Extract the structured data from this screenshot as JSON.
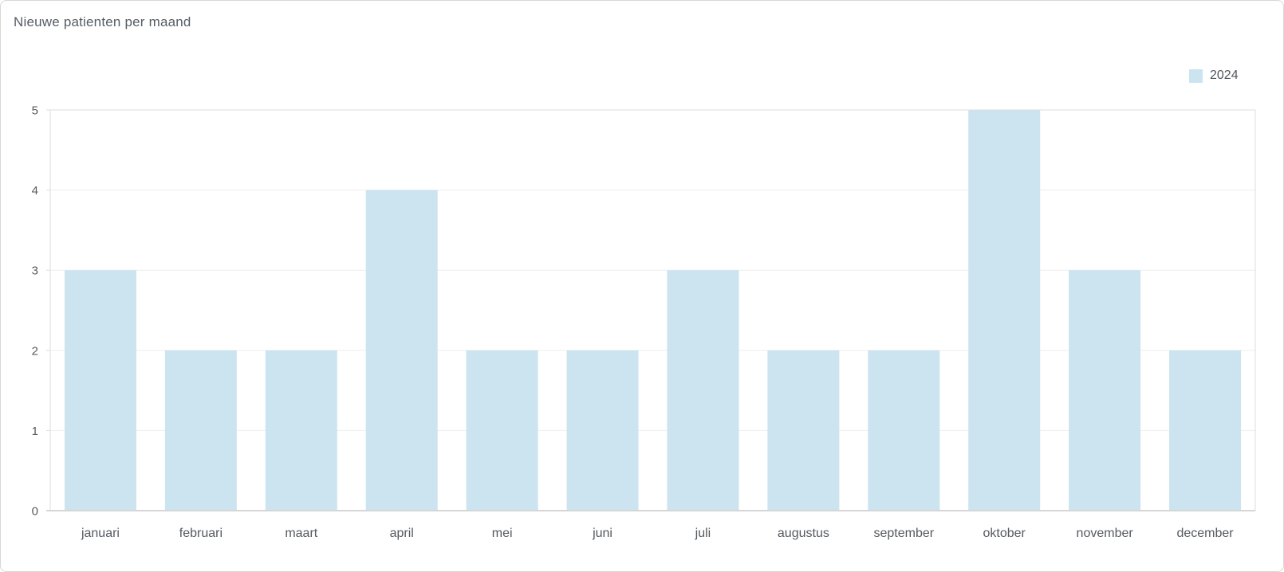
{
  "page": {
    "title": "Nieuwe patienten per maand"
  },
  "legend": {
    "items": [
      {
        "label": "2024",
        "swatch_color": "#cce3f0"
      }
    ]
  },
  "chart_data": {
    "type": "bar",
    "title": "Nieuwe patienten per maand",
    "categories": [
      "januari",
      "februari",
      "maart",
      "april",
      "mei",
      "juni",
      "juli",
      "augustus",
      "september",
      "oktober",
      "november",
      "december"
    ],
    "series": [
      {
        "name": "2024",
        "color": "#cce3f0",
        "values": [
          3,
          2,
          2,
          4,
          2,
          2,
          3,
          2,
          2,
          5,
          3,
          2
        ]
      }
    ],
    "xlabel": "",
    "ylabel": "",
    "ylim": [
      0,
      5
    ],
    "yticks": [
      0,
      1,
      2,
      3,
      4,
      5
    ],
    "grid": true,
    "legend_position": "top-right",
    "colors": {
      "grid_line": "#ededed",
      "plot_border": "#dddddd",
      "axis_line": "#d6d6d6",
      "tick_text": "#555a60"
    }
  }
}
